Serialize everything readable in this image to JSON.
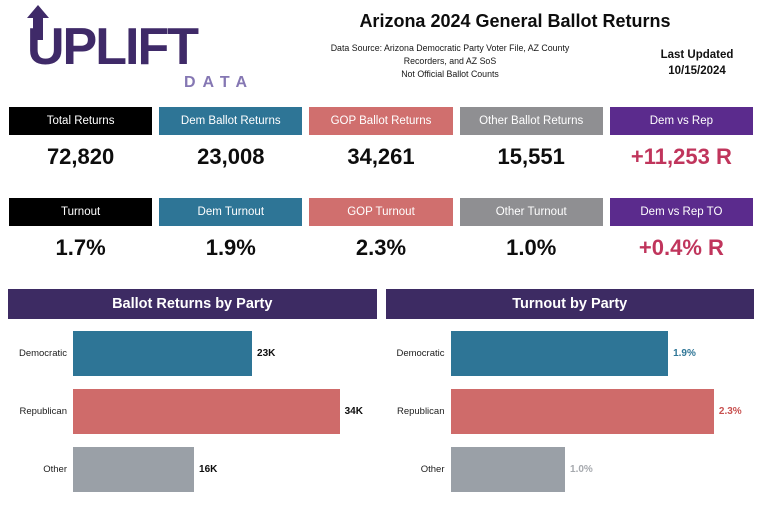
{
  "logo": {
    "word": "UPLIFT",
    "sub": "DATA"
  },
  "header": {
    "title": "Arizona 2024 General Ballot Returns",
    "source_lines": [
      "Data Source: Arizona Democratic Party Voter File, AZ County",
      "Recorders, and AZ SoS",
      "Not Official Ballot Counts"
    ],
    "last_updated_label": "Last Updated",
    "last_updated_date": "10/15/2024"
  },
  "colors": {
    "logo_purple": "#3f2a68",
    "logo_sub_purple": "#8577b3",
    "black": "#000000",
    "dem_blue": "#2e7596",
    "gop_red": "#d06f6e",
    "other_gray": "#8f8f92",
    "vs_purple": "#5b2b8d",
    "crimson": "#c0355c",
    "chart_header_purple": "#3d2b63"
  },
  "stat_rows": [
    {
      "cards": [
        {
          "label": "Total Returns",
          "value": "72,820",
          "header_bg": "#000000",
          "value_color": "#0d0d0d"
        },
        {
          "label": "Dem Ballot Returns",
          "value": "23,008",
          "header_bg": "#2e7596",
          "value_color": "#0d0d0d"
        },
        {
          "label": "GOP Ballot Returns",
          "value": "34,261",
          "header_bg": "#d06f6e",
          "value_color": "#0d0d0d"
        },
        {
          "label": "Other Ballot Returns",
          "value": "15,551",
          "header_bg": "#8f8f92",
          "value_color": "#0d0d0d"
        },
        {
          "label": "Dem vs Rep",
          "value": "+11,253 R",
          "header_bg": "#5b2b8d",
          "value_color": "#c0355c"
        }
      ]
    },
    {
      "cards": [
        {
          "label": "Turnout",
          "value": "1.7%",
          "header_bg": "#000000",
          "value_color": "#0d0d0d"
        },
        {
          "label": "Dem Turnout",
          "value": "1.9%",
          "header_bg": "#2e7596",
          "value_color": "#0d0d0d"
        },
        {
          "label": "GOP Turnout",
          "value": "2.3%",
          "header_bg": "#d06f6e",
          "value_color": "#0d0d0d"
        },
        {
          "label": "Other Turnout",
          "value": "1.0%",
          "header_bg": "#8f8f92",
          "value_color": "#0d0d0d"
        },
        {
          "label": "Dem vs Rep TO",
          "value": "+0.4% R",
          "header_bg": "#5b2b8d",
          "value_color": "#c0355c"
        }
      ]
    }
  ],
  "chart_data": [
    {
      "type": "bar",
      "orientation": "horizontal",
      "title": "Ballot Returns by Party",
      "categories": [
        "Democratic",
        "Republican",
        "Other"
      ],
      "values": [
        23008,
        34261,
        15551
      ],
      "value_labels": [
        "23K",
        "34K",
        "16K"
      ],
      "bar_colors": [
        "#2e7596",
        "#cf6b6a",
        "#9aa0a7"
      ],
      "value_label_colors": [
        "#0d0d0d",
        "#0d0d0d",
        "#0d0d0d"
      ],
      "xlim": [
        0,
        39000
      ],
      "grid": false,
      "legend": "none"
    },
    {
      "type": "bar",
      "orientation": "horizontal",
      "title": "Turnout by Party",
      "categories": [
        "Democratic",
        "Republican",
        "Other"
      ],
      "values": [
        1.9,
        2.3,
        1.0
      ],
      "value_labels": [
        "1.9%",
        "2.3%",
        "1.0%"
      ],
      "bar_colors": [
        "#2e7596",
        "#cf6b6a",
        "#9aa0a7"
      ],
      "value_label_colors": [
        "#2e7596",
        "#c8504f",
        "#a6a9ae"
      ],
      "xlim": [
        0,
        2.65
      ],
      "grid": false,
      "legend": "none"
    }
  ]
}
